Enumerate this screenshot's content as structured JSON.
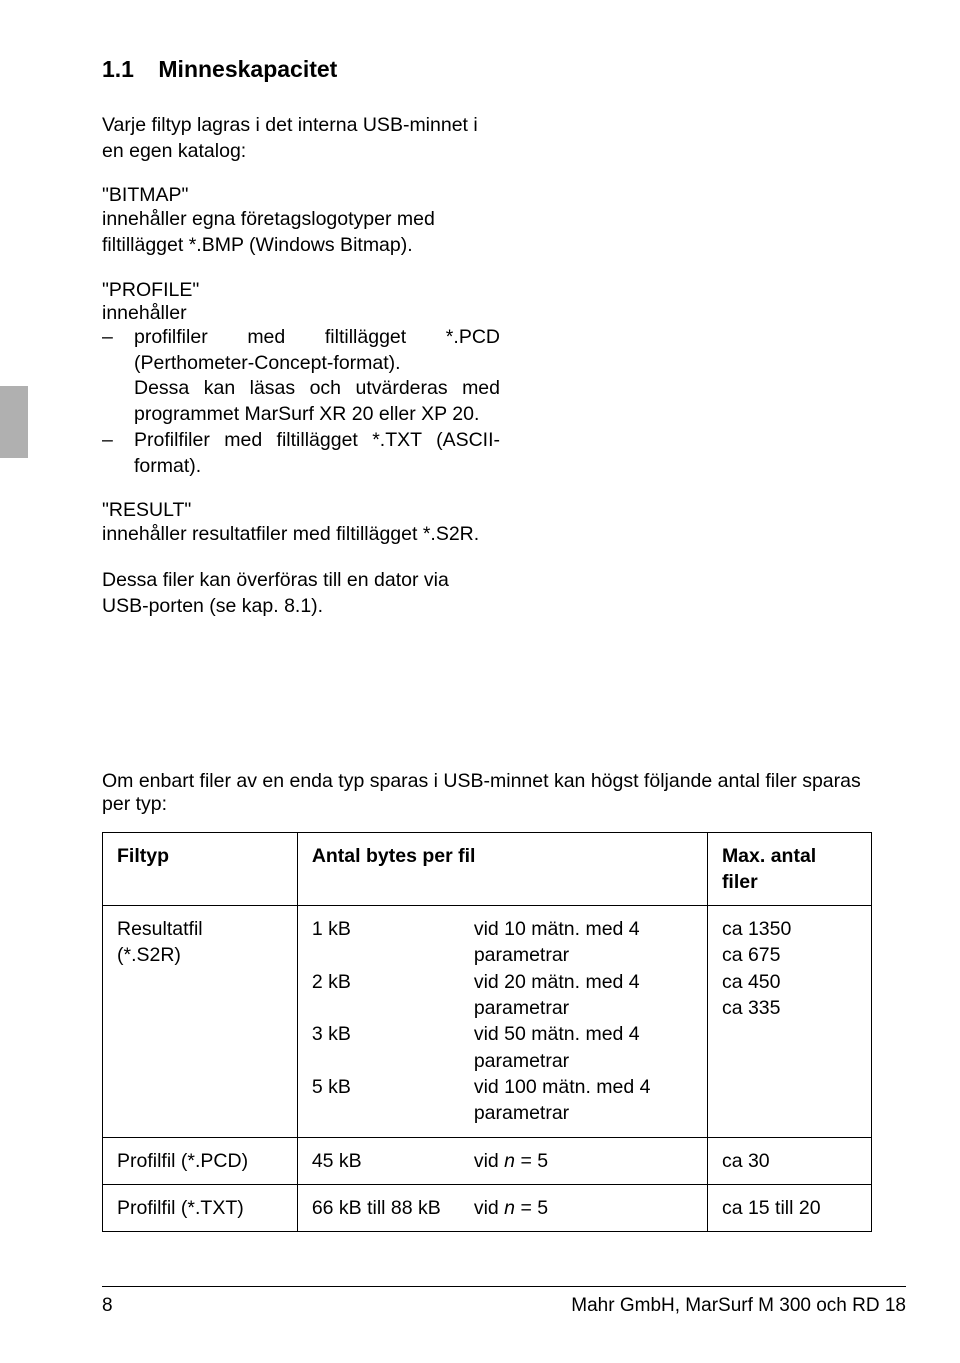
{
  "section": {
    "number": "1.1",
    "title": "Minneskapacitet"
  },
  "intro": "Varje filtyp lagras i det interna USB-minnet i en egen katalog:",
  "bitmap": {
    "title": "\"BITMAP\"",
    "text": "innehåller egna företagslogotyper med filtillägget *.BMP (Windows Bitmap)."
  },
  "profile": {
    "title": "\"PROFILE\"",
    "intro": "innehåller",
    "items": [
      "profilfiler med filtillägget *.PCD (Perthometer-Concept-format).\nDessa kan läsas och utvärderas med programmet MarSurf XR 20 eller XP 20.",
      "Profilfiler med filtillägget *.TXT (ASCII-format)."
    ]
  },
  "result": {
    "title": "\"RESULT\"",
    "text": "innehåller resultatfiler med filtillägget *.S2R."
  },
  "transfer": "Dessa filer kan överföras till en dator via USB-porten (se kap. 8.1).",
  "table_intro": "Om enbart filer av en enda typ sparas i USB-minnet kan högst följande antal filer sparas per typ:",
  "table": {
    "headers": {
      "filtyp": "Filtyp",
      "bytes": "Antal bytes per fil",
      "max": "Max. antal filer"
    },
    "rows": [
      {
        "filtyp_lines": [
          "Resultatfil",
          "(*.S2R)"
        ],
        "bytes_lines": [
          {
            "left": "1 kB",
            "right": "vid 10 mätn. med 4 parametrar"
          },
          {
            "left": "2 kB",
            "right": "vid 20 mätn. med 4 parametrar"
          },
          {
            "left": "3 kB",
            "right": "vid 50 mätn. med 4 parametrar"
          },
          {
            "left": "5 kB",
            "right": "vid 100 mätn. med 4 parametrar"
          }
        ],
        "max_lines": [
          "ca 1350",
          "ca 675",
          "ca 450",
          "ca 335"
        ]
      },
      {
        "filtyp_lines": [
          "Profilfil (*.PCD)"
        ],
        "bytes_lines": [
          {
            "left": "45 kB",
            "right_prefix": "vid ",
            "right_var": "n",
            "right_suffix": " = 5"
          }
        ],
        "max_lines": [
          "ca 30"
        ]
      },
      {
        "filtyp_lines": [
          "Profilfil (*.TXT)"
        ],
        "bytes_lines": [
          {
            "left": "66 kB till 88 kB",
            "right_prefix": "vid ",
            "right_var": "n",
            "right_suffix": " = 5"
          }
        ],
        "max_lines": [
          "ca 15 till 20"
        ]
      }
    ]
  },
  "footer": {
    "page": "8",
    "text": "Mahr GmbH,  MarSurf M 300 och RD 18"
  },
  "colors": {
    "margin_tab": "#b0b0b0",
    "text": "#000000",
    "background": "#ffffff",
    "border": "#000000"
  }
}
